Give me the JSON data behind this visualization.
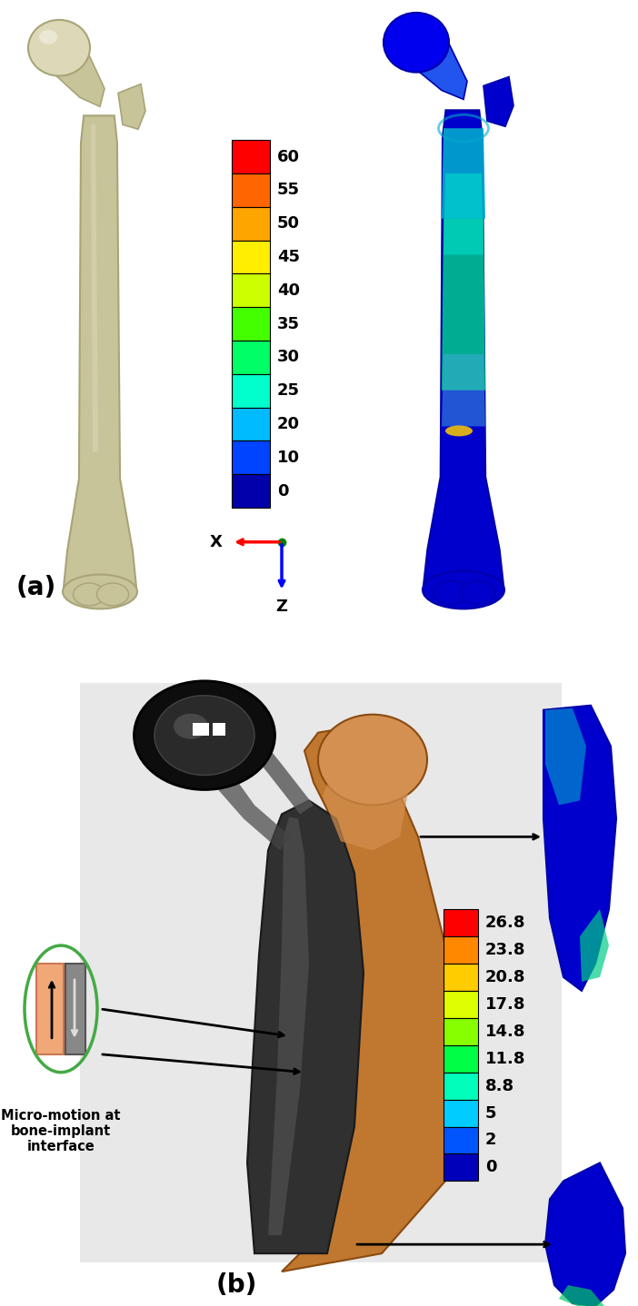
{
  "panel_a": {
    "colorbar_values": [
      "60",
      "55",
      "50",
      "45",
      "40",
      "35",
      "30",
      "25",
      "20",
      "10",
      "0"
    ],
    "colorbar_colors": [
      "#ff0000",
      "#ff6600",
      "#ffa500",
      "#ffee00",
      "#ccff00",
      "#44ff00",
      "#00ff66",
      "#00ffcc",
      "#00bbff",
      "#0044ff",
      "#0000aa"
    ],
    "label": "(a)",
    "axis_label_x": "X",
    "axis_label_z": "Z"
  },
  "panel_b": {
    "colorbar_values": [
      "26.8",
      "23.8",
      "20.8",
      "17.8",
      "14.8",
      "11.8",
      "8.8",
      "5",
      "2",
      "0"
    ],
    "colorbar_colors": [
      "#ff0000",
      "#ff8800",
      "#ffcc00",
      "#ddff00",
      "#88ff00",
      "#00ff44",
      "#00ffbb",
      "#00ccff",
      "#0055ff",
      "#0000bb"
    ],
    "label": "(b)",
    "micro_motion_text": "Micro-motion at\nbone-implant\ninterface"
  },
  "bg_color": "#ffffff",
  "panel_b_bg": "#e8e8e8",
  "label_fontsize": 20,
  "tick_fontsize": 13,
  "axis_label_fontsize": 13,
  "bone_beige": "#c8c49a",
  "bone_beige_light": "#ddd9b8",
  "bone_beige_dark": "#a8a478",
  "stress_blue_dark": "#0000cc",
  "stress_blue": "#0000ee",
  "stress_cyan": "#00aacc",
  "stress_green": "#00cc88",
  "stress_teal": "#00ddcc",
  "hip_bone_color": "#c07830",
  "hip_bone_light": "#d49050",
  "hip_metal_dark": "#1a1a1a",
  "hip_metal_mid": "#444444",
  "hip_metal_light": "#888888",
  "orange_rect": "#f0a878",
  "gray_rect": "#888888",
  "green_oval": "#44aa44"
}
